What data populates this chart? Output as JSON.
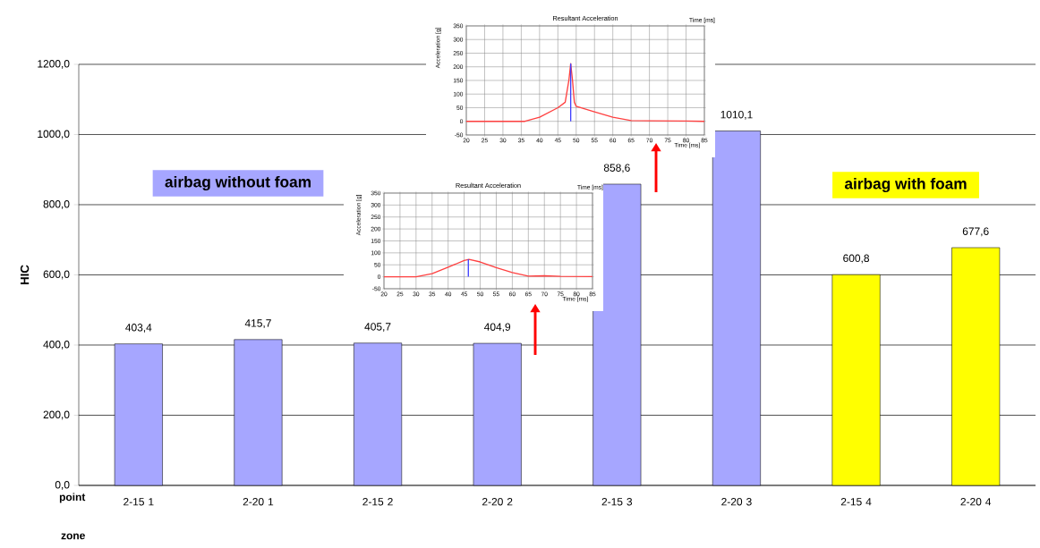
{
  "chart_data": [
    {
      "type": "bar",
      "ylabel": "HIC",
      "categories": [
        "2-15 1",
        "2-20 1",
        "2-15 2",
        "2-20 2",
        "2-15 3",
        "2-20 3",
        "2-15 4",
        "2-20 4"
      ],
      "values": [
        403.4,
        415.7,
        405.7,
        404.9,
        858.6,
        1010.1,
        600.8,
        677.6
      ],
      "colors": [
        "#a6a6ff",
        "#a6a6ff",
        "#a6a6ff",
        "#a6a6ff",
        "#a6a6ff",
        "#a6a6ff",
        "#ffff00",
        "#ffff00"
      ],
      "value_labels": [
        "403,4",
        "415,7",
        "405,7",
        "404,9",
        "858,6",
        "1010,1",
        "600,8",
        "677,6"
      ],
      "ylim": [
        0,
        1200
      ],
      "yticks": [
        {
          "value": 0,
          "label": "0,0"
        },
        {
          "value": 200,
          "label": "200,0"
        },
        {
          "value": 400,
          "label": "400,0"
        },
        {
          "value": 600,
          "label": "600,0"
        },
        {
          "value": 800,
          "label": "800,0"
        },
        {
          "value": 1000,
          "label": "1000,0"
        },
        {
          "value": 1200,
          "label": "1200,0"
        }
      ],
      "grid": "y",
      "annotations": [
        "point",
        "zone",
        "airbag without foam",
        "airbag with foam"
      ]
    },
    {
      "type": "line",
      "title": "Resultant Acceleration",
      "xlabel": "Time [ms]",
      "ylabel": "Acceleration [g]",
      "series": [
        {
          "color": "#ff4040",
          "x": [
            20,
            30,
            36,
            40,
            45,
            47,
            48,
            48.5,
            49,
            49.5,
            50,
            55,
            60,
            65,
            70,
            80,
            85
          ],
          "values": [
            0,
            0,
            0,
            15,
            50,
            70,
            150,
            212,
            150,
            70,
            55,
            35,
            15,
            3,
            2,
            1,
            0
          ]
        },
        {
          "color": "#4040ff",
          "x": [
            48.5,
            48.5
          ],
          "values": [
            0,
            212
          ]
        }
      ],
      "xlim": [
        20,
        85
      ],
      "xticks": [
        20,
        25,
        30,
        35,
        40,
        45,
        50,
        55,
        60,
        65,
        70,
        75,
        80,
        85
      ],
      "ylim": [
        -50,
        350
      ],
      "yticks": [
        -50,
        0,
        50,
        100,
        150,
        200,
        250,
        300,
        350
      ],
      "grid": true,
      "annotations": [
        "Time [ms]"
      ]
    },
    {
      "type": "line",
      "title": "Resultant Acceleration",
      "xlabel": "Time [ms]",
      "ylabel": "Acceleration [g]",
      "series": [
        {
          "color": "#ff4040",
          "x": [
            20,
            25,
            30,
            35,
            40,
            45,
            46.5,
            50,
            55,
            60,
            65,
            70,
            75,
            85
          ],
          "values": [
            0,
            0,
            0,
            13,
            40,
            68,
            73,
            62,
            38,
            18,
            3,
            4,
            2,
            1
          ]
        },
        {
          "color": "#4040ff",
          "x": [
            46.3,
            46.3
          ],
          "values": [
            0,
            73
          ]
        }
      ],
      "xlim": [
        20,
        85
      ],
      "xticks": [
        20,
        25,
        30,
        35,
        40,
        45,
        50,
        55,
        60,
        65,
        70,
        75,
        80,
        85
      ],
      "ylim": [
        -50,
        350
      ],
      "yticks": [
        -50,
        0,
        50,
        100,
        150,
        200,
        250,
        300,
        350
      ],
      "grid": true,
      "annotations": [
        "Time [ms]"
      ]
    }
  ]
}
